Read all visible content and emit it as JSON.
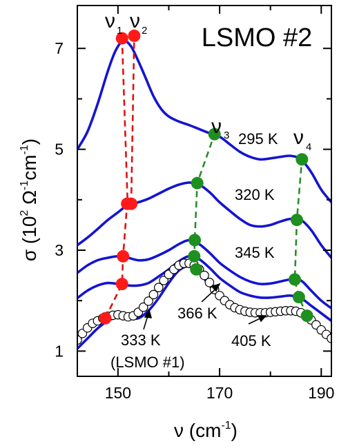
{
  "chart_data": {
    "type": "line",
    "title": "LSMO #2",
    "xlabel": "ν (cm",
    "xlabel_sup": "-1",
    "xlabel_close": ")",
    "ylabel": "σ  (10",
    "ylabel_sup1": "2",
    "ylabel_mid": " Ω",
    "ylabel_sup2": "-1",
    "ylabel_mid2": "cm",
    "ylabel_sup3": "-1",
    "ylabel_close": ")",
    "xlim": [
      142,
      192
    ],
    "ylim": [
      0.5,
      7.85
    ],
    "xticks": [
      150,
      170,
      190
    ],
    "xticks_minor": [
      160,
      180
    ],
    "yticks": [
      1,
      3,
      5,
      7
    ],
    "yticks_minor": [
      2,
      4,
      6
    ],
    "series": [
      {
        "name": "295 K",
        "color": "#1414d2",
        "x": [
          142,
          144,
          146,
          148,
          149.5,
          151,
          152.5,
          154,
          155.5,
          157,
          158.5,
          160,
          162,
          164,
          166,
          168,
          170,
          172,
          174,
          176,
          178,
          180,
          182,
          184,
          186,
          188,
          190,
          192
        ],
        "y": [
          5.0,
          5.35,
          5.9,
          6.55,
          6.95,
          7.15,
          7.05,
          6.75,
          6.4,
          6.05,
          5.8,
          5.65,
          5.55,
          5.48,
          5.4,
          5.32,
          5.25,
          5.1,
          4.95,
          4.85,
          4.8,
          4.82,
          4.85,
          4.87,
          4.8,
          4.55,
          4.2,
          3.95
        ]
      },
      {
        "name": "320 K",
        "color": "#1414d2",
        "x": [
          142,
          144,
          146,
          148,
          150,
          152,
          154,
          156,
          158,
          160,
          162,
          164,
          166,
          168,
          170,
          172,
          174,
          176,
          178,
          180,
          182,
          184,
          186,
          188,
          190,
          192
        ],
        "y": [
          3.1,
          3.25,
          3.42,
          3.6,
          3.75,
          3.9,
          3.95,
          4.02,
          4.12,
          4.22,
          4.3,
          4.34,
          4.3,
          4.15,
          3.95,
          3.78,
          3.62,
          3.5,
          3.47,
          3.5,
          3.57,
          3.62,
          3.6,
          3.4,
          3.1,
          2.85
        ]
      },
      {
        "name": "345 K",
        "color": "#1414d2",
        "x": [
          142,
          144,
          146,
          148,
          150,
          152,
          154,
          156,
          158,
          160,
          162,
          164,
          166,
          168,
          170,
          172,
          174,
          176,
          178,
          180,
          182,
          184,
          186,
          188,
          190,
          192
        ],
        "y": [
          2.55,
          2.7,
          2.8,
          2.85,
          2.88,
          2.85,
          2.8,
          2.82,
          2.9,
          3.0,
          3.12,
          3.2,
          3.12,
          2.95,
          2.75,
          2.6,
          2.47,
          2.38,
          2.33,
          2.34,
          2.38,
          2.42,
          2.4,
          2.2,
          2.0,
          1.85
        ]
      },
      {
        "name": "366 K",
        "color": "#1414d2",
        "x": [
          142,
          144,
          146,
          148,
          150,
          152,
          154,
          156,
          158,
          160,
          162,
          164,
          166,
          168,
          170,
          172,
          174,
          176,
          178,
          180,
          182,
          184,
          186,
          188,
          190,
          192
        ],
        "y": [
          2.05,
          2.2,
          2.3,
          2.35,
          2.33,
          2.3,
          2.3,
          2.35,
          2.48,
          2.62,
          2.78,
          2.88,
          2.82,
          2.65,
          2.45,
          2.3,
          2.17,
          2.1,
          2.06,
          2.06,
          2.08,
          2.1,
          2.05,
          1.9,
          1.75,
          1.6
        ]
      },
      {
        "name": "405 K",
        "color": "#1414d2",
        "x": [
          142,
          144,
          146,
          148,
          150,
          152,
          154,
          156,
          158,
          160,
          162,
          164,
          166,
          168,
          170,
          172,
          174,
          176,
          178,
          180,
          182,
          184,
          186,
          188,
          190,
          192
        ],
        "y": [
          1.05,
          1.25,
          1.45,
          1.6,
          1.67,
          1.66,
          1.65,
          1.8,
          2.05,
          2.35,
          2.6,
          2.68,
          2.55,
          2.3,
          2.05,
          1.9,
          1.8,
          1.74,
          1.72,
          1.72,
          1.74,
          1.76,
          1.72,
          1.6,
          1.42,
          1.25
        ]
      }
    ],
    "series_open": {
      "name": "333 K (LSMO #1)",
      "x": [
        142,
        143,
        144,
        145,
        146,
        147,
        148,
        149,
        150,
        151,
        152,
        153,
        154,
        155,
        156,
        157,
        158,
        159,
        160,
        161,
        162,
        163,
        164,
        165,
        166,
        167,
        168,
        169,
        170,
        171,
        172,
        173,
        174,
        175,
        176,
        177,
        178,
        179,
        180,
        181,
        182,
        183,
        184,
        185,
        186,
        187,
        188,
        189,
        190,
        191,
        192
      ],
      "y": [
        1.22,
        1.35,
        1.46,
        1.55,
        1.6,
        1.65,
        1.69,
        1.71,
        1.72,
        1.7,
        1.68,
        1.7,
        1.77,
        1.87,
        1.99,
        2.12,
        2.26,
        2.4,
        2.52,
        2.62,
        2.7,
        2.74,
        2.74,
        2.7,
        2.62,
        2.5,
        2.36,
        2.22,
        2.1,
        2.0,
        1.92,
        1.86,
        1.82,
        1.79,
        1.77,
        1.76,
        1.76,
        1.76,
        1.77,
        1.78,
        1.79,
        1.8,
        1.8,
        1.79,
        1.76,
        1.7,
        1.62,
        1.52,
        1.42,
        1.33,
        1.25
      ],
      "marker_color": "#000000"
    },
    "modes": [
      {
        "name": "ν1",
        "label": "ν",
        "sub": "1",
        "color": "#e01010",
        "point_color": "#ff1a1a",
        "x": [
          147.5,
          150.8,
          151.0,
          151.8,
          151.9,
          150.8
        ],
        "y": [
          1.65,
          2.33,
          2.88,
          3.92,
          3.92,
          7.2
        ]
      },
      {
        "name": "ν2",
        "label": "ν",
        "sub": "2",
        "color": "#e01010",
        "point_color": "#ff1a1a",
        "x": [
          152.6,
          153.2
        ],
        "y": [
          3.92,
          7.25
        ]
      },
      {
        "name": "ν3",
        "label": "ν",
        "sub": "3",
        "color": "#2a8c2a",
        "point_color": "#1f8f1f",
        "x": [
          165.4,
          165.0,
          165.1,
          165.6,
          169.0
        ],
        "y": [
          2.62,
          2.88,
          3.2,
          4.33,
          5.3
        ]
      },
      {
        "name": "ν4",
        "label": "ν",
        "sub": "4",
        "color": "#2a8c2a",
        "point_color": "#1f8f1f",
        "x": [
          187.2,
          185.6,
          184.8,
          185.2,
          186.2
        ],
        "y": [
          1.7,
          2.07,
          2.42,
          3.6,
          4.8
        ]
      }
    ],
    "annotations": [
      {
        "id": "ann-295",
        "text": "295 K"
      },
      {
        "id": "ann-320",
        "text": "320 K"
      },
      {
        "id": "ann-345",
        "text": "345 K"
      },
      {
        "id": "ann-366",
        "text": "366 K"
      },
      {
        "id": "ann-405",
        "text": "405 K"
      },
      {
        "id": "ann-333",
        "text": "333 K"
      },
      {
        "id": "ann-lsmo1",
        "text": "(LSMO #1)"
      }
    ],
    "grid": false,
    "legend": "none"
  }
}
